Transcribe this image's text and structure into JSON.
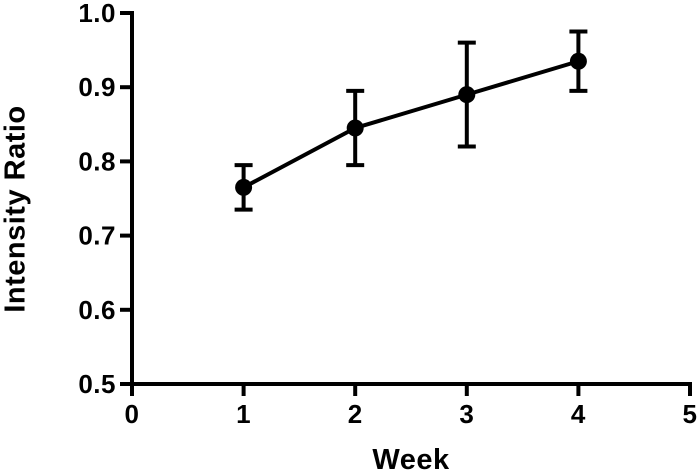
{
  "window": {
    "background": "#ffffff",
    "ink": "#000000"
  },
  "chart_data": {
    "type": "line",
    "xlabel": "Week",
    "ylabel": "Intensity Ratio",
    "x": [
      1,
      2,
      3,
      4
    ],
    "values": [
      0.765,
      0.845,
      0.89,
      0.935
    ],
    "error_plus": [
      0.03,
      0.05,
      0.07,
      0.04
    ],
    "error_minus": [
      0.03,
      0.05,
      0.07,
      0.04
    ],
    "xlim": [
      0,
      5
    ],
    "ylim": [
      0.5,
      1.0
    ],
    "x_ticks": [
      0,
      1,
      2,
      3,
      4,
      5
    ],
    "x_tick_labels": [
      "0",
      "1",
      "2",
      "3",
      "4",
      "5"
    ],
    "y_ticks": [
      0.5,
      0.6,
      0.7,
      0.8,
      0.9,
      1.0
    ],
    "y_tick_labels": [
      "0.5",
      "0.6",
      "0.7",
      "0.8",
      "0.9",
      "1.0"
    ],
    "grid": false,
    "legend": "none",
    "marker": "circle",
    "line_color": "#000000",
    "marker_color": "#000000",
    "axis_color": "#000000"
  }
}
